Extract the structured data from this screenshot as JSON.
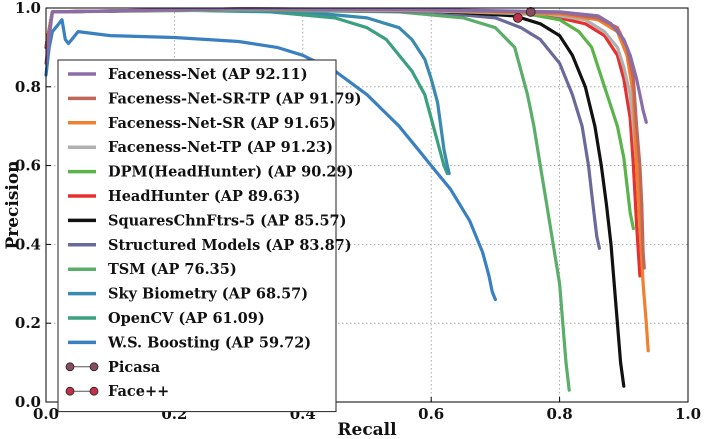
{
  "chart_data": {
    "type": "line",
    "title": "",
    "xlabel": "Recall",
    "ylabel": "Precision",
    "xlim": [
      0.0,
      1.0
    ],
    "ylim": [
      0.0,
      1.0
    ],
    "xticks": [
      "0.0",
      "0.2",
      "0.4",
      "0.6",
      "0.8",
      "1.0"
    ],
    "yticks": [
      "0.0",
      "0.2",
      "0.4",
      "0.6",
      "0.8",
      "1.0"
    ],
    "grid": true,
    "legend_position": "left",
    "series": [
      {
        "name": "Faceness-Net (AP 92.11)",
        "color": "#8a6da8",
        "points": [
          [
            0.0,
            0.86
          ],
          [
            0.01,
            0.99
          ],
          [
            0.3,
            0.998
          ],
          [
            0.6,
            0.996
          ],
          [
            0.8,
            0.99
          ],
          [
            0.86,
            0.98
          ],
          [
            0.88,
            0.96
          ],
          [
            0.9,
            0.92
          ],
          [
            0.91,
            0.88
          ],
          [
            0.92,
            0.82
          ],
          [
            0.925,
            0.78
          ],
          [
            0.93,
            0.74
          ],
          [
            0.935,
            0.71
          ]
        ]
      },
      {
        "name": "Faceness-Net-SR-TP (AP 91.79)",
        "color": "#c0675c",
        "points": [
          [
            0.0,
            0.9
          ],
          [
            0.01,
            0.99
          ],
          [
            0.3,
            0.998
          ],
          [
            0.6,
            0.995
          ],
          [
            0.8,
            0.988
          ],
          [
            0.86,
            0.975
          ],
          [
            0.89,
            0.95
          ],
          [
            0.905,
            0.9
          ],
          [
            0.915,
            0.82
          ],
          [
            0.92,
            0.7
          ],
          [
            0.925,
            0.6
          ],
          [
            0.928,
            0.5
          ],
          [
            0.93,
            0.38
          ],
          [
            0.932,
            0.34
          ]
        ]
      },
      {
        "name": "Faceness-Net-SR (AP 91.65)",
        "color": "#f08030",
        "points": [
          [
            0.0,
            0.9
          ],
          [
            0.01,
            0.99
          ],
          [
            0.3,
            0.998
          ],
          [
            0.6,
            0.995
          ],
          [
            0.8,
            0.985
          ],
          [
            0.86,
            0.97
          ],
          [
            0.89,
            0.94
          ],
          [
            0.905,
            0.88
          ],
          [
            0.915,
            0.78
          ],
          [
            0.92,
            0.6
          ],
          [
            0.925,
            0.45
          ],
          [
            0.93,
            0.3
          ],
          [
            0.935,
            0.2
          ],
          [
            0.938,
            0.13
          ]
        ]
      },
      {
        "name": "Faceness-Net-TP (AP 91.23)",
        "color": "#b0b0b0",
        "points": [
          [
            0.0,
            0.9
          ],
          [
            0.01,
            0.99
          ],
          [
            0.3,
            0.997
          ],
          [
            0.6,
            0.993
          ],
          [
            0.78,
            0.985
          ],
          [
            0.84,
            0.97
          ],
          [
            0.87,
            0.94
          ],
          [
            0.89,
            0.9
          ],
          [
            0.9,
            0.85
          ],
          [
            0.91,
            0.78
          ],
          [
            0.915,
            0.7
          ],
          [
            0.92,
            0.6
          ],
          [
            0.925,
            0.52
          ],
          [
            0.928,
            0.5
          ]
        ]
      },
      {
        "name": "DPM(HeadHunter) (AP 90.29)",
        "color": "#5ab44a",
        "points": [
          [
            0.0,
            0.9
          ],
          [
            0.01,
            0.99
          ],
          [
            0.3,
            0.997
          ],
          [
            0.6,
            0.993
          ],
          [
            0.75,
            0.985
          ],
          [
            0.8,
            0.97
          ],
          [
            0.83,
            0.94
          ],
          [
            0.85,
            0.9
          ],
          [
            0.86,
            0.85
          ],
          [
            0.87,
            0.8
          ],
          [
            0.88,
            0.75
          ],
          [
            0.89,
            0.7
          ],
          [
            0.9,
            0.62
          ],
          [
            0.905,
            0.55
          ],
          [
            0.91,
            0.48
          ],
          [
            0.915,
            0.44
          ]
        ]
      },
      {
        "name": "HeadHunter (AP 89.63)",
        "color": "#e53030",
        "points": [
          [
            0.0,
            0.9
          ],
          [
            0.01,
            0.99
          ],
          [
            0.3,
            0.997
          ],
          [
            0.6,
            0.993
          ],
          [
            0.75,
            0.985
          ],
          [
            0.8,
            0.975
          ],
          [
            0.84,
            0.96
          ],
          [
            0.87,
            0.93
          ],
          [
            0.89,
            0.88
          ],
          [
            0.9,
            0.82
          ],
          [
            0.91,
            0.72
          ],
          [
            0.915,
            0.6
          ],
          [
            0.92,
            0.45
          ],
          [
            0.925,
            0.32
          ]
        ]
      },
      {
        "name": "SquaresChnFtrs-5 (AP 85.57)",
        "color": "#111111",
        "points": [
          [
            0.0,
            0.9
          ],
          [
            0.01,
            0.99
          ],
          [
            0.3,
            0.997
          ],
          [
            0.6,
            0.993
          ],
          [
            0.73,
            0.98
          ],
          [
            0.77,
            0.96
          ],
          [
            0.8,
            0.93
          ],
          [
            0.82,
            0.88
          ],
          [
            0.84,
            0.8
          ],
          [
            0.855,
            0.7
          ],
          [
            0.865,
            0.6
          ],
          [
            0.873,
            0.5
          ],
          [
            0.88,
            0.4
          ],
          [
            0.885,
            0.3
          ],
          [
            0.89,
            0.2
          ],
          [
            0.895,
            0.1
          ],
          [
            0.9,
            0.04
          ]
        ]
      },
      {
        "name": "Structured Models (AP 83.87)",
        "color": "#6a6a9a",
        "points": [
          [
            0.0,
            0.9
          ],
          [
            0.01,
            0.99
          ],
          [
            0.3,
            0.997
          ],
          [
            0.6,
            0.99
          ],
          [
            0.7,
            0.975
          ],
          [
            0.74,
            0.95
          ],
          [
            0.77,
            0.92
          ],
          [
            0.8,
            0.86
          ],
          [
            0.82,
            0.78
          ],
          [
            0.835,
            0.7
          ],
          [
            0.845,
            0.6
          ],
          [
            0.852,
            0.5
          ],
          [
            0.858,
            0.42
          ],
          [
            0.862,
            0.39
          ]
        ]
      },
      {
        "name": "TSM (AP 76.35)",
        "color": "#5aae6a",
        "points": [
          [
            0.0,
            0.9
          ],
          [
            0.01,
            0.99
          ],
          [
            0.3,
            0.995
          ],
          [
            0.55,
            0.99
          ],
          [
            0.65,
            0.975
          ],
          [
            0.7,
            0.95
          ],
          [
            0.73,
            0.9
          ],
          [
            0.74,
            0.84
          ],
          [
            0.75,
            0.78
          ],
          [
            0.76,
            0.7
          ],
          [
            0.77,
            0.6
          ],
          [
            0.78,
            0.5
          ],
          [
            0.79,
            0.4
          ],
          [
            0.8,
            0.3
          ],
          [
            0.805,
            0.2
          ],
          [
            0.81,
            0.1
          ],
          [
            0.815,
            0.03
          ]
        ]
      },
      {
        "name": "Sky Biometry (AP 68.57)",
        "color": "#3a8ab0",
        "points": [
          [
            0.0,
            0.9
          ],
          [
            0.01,
            0.99
          ],
          [
            0.2,
            0.995
          ],
          [
            0.4,
            0.99
          ],
          [
            0.5,
            0.975
          ],
          [
            0.55,
            0.95
          ],
          [
            0.57,
            0.92
          ],
          [
            0.59,
            0.87
          ],
          [
            0.6,
            0.82
          ],
          [
            0.61,
            0.76
          ],
          [
            0.615,
            0.7
          ],
          [
            0.62,
            0.64
          ],
          [
            0.625,
            0.6
          ],
          [
            0.628,
            0.58
          ]
        ]
      },
      {
        "name": "OpenCV (AP 61.09)",
        "color": "#3aa080",
        "points": [
          [
            0.0,
            0.9
          ],
          [
            0.01,
            0.99
          ],
          [
            0.2,
            0.995
          ],
          [
            0.35,
            0.99
          ],
          [
            0.45,
            0.975
          ],
          [
            0.5,
            0.95
          ],
          [
            0.53,
            0.92
          ],
          [
            0.55,
            0.88
          ],
          [
            0.57,
            0.84
          ],
          [
            0.59,
            0.78
          ],
          [
            0.6,
            0.72
          ],
          [
            0.61,
            0.66
          ],
          [
            0.62,
            0.6
          ],
          [
            0.625,
            0.58
          ]
        ]
      },
      {
        "name": "W.S. Boosting (AP 59.72)",
        "color": "#3a80c0",
        "points": [
          [
            0.0,
            0.83
          ],
          [
            0.005,
            0.9
          ],
          [
            0.01,
            0.94
          ],
          [
            0.02,
            0.96
          ],
          [
            0.025,
            0.97
          ],
          [
            0.03,
            0.92
          ],
          [
            0.035,
            0.91
          ],
          [
            0.05,
            0.94
          ],
          [
            0.1,
            0.93
          ],
          [
            0.2,
            0.925
          ],
          [
            0.3,
            0.915
          ],
          [
            0.36,
            0.9
          ],
          [
            0.4,
            0.88
          ],
          [
            0.45,
            0.84
          ],
          [
            0.5,
            0.78
          ],
          [
            0.55,
            0.7
          ],
          [
            0.58,
            0.64
          ],
          [
            0.6,
            0.6
          ],
          [
            0.63,
            0.54
          ],
          [
            0.66,
            0.46
          ],
          [
            0.68,
            0.38
          ],
          [
            0.69,
            0.32
          ],
          [
            0.695,
            0.28
          ],
          [
            0.7,
            0.26
          ]
        ]
      }
    ],
    "markers": [
      {
        "name": "Picasa",
        "color": "#8a4a60",
        "x": 0.755,
        "y": 0.99
      },
      {
        "name": "Face++",
        "color": "#c03048",
        "x": 0.735,
        "y": 0.975
      }
    ]
  }
}
